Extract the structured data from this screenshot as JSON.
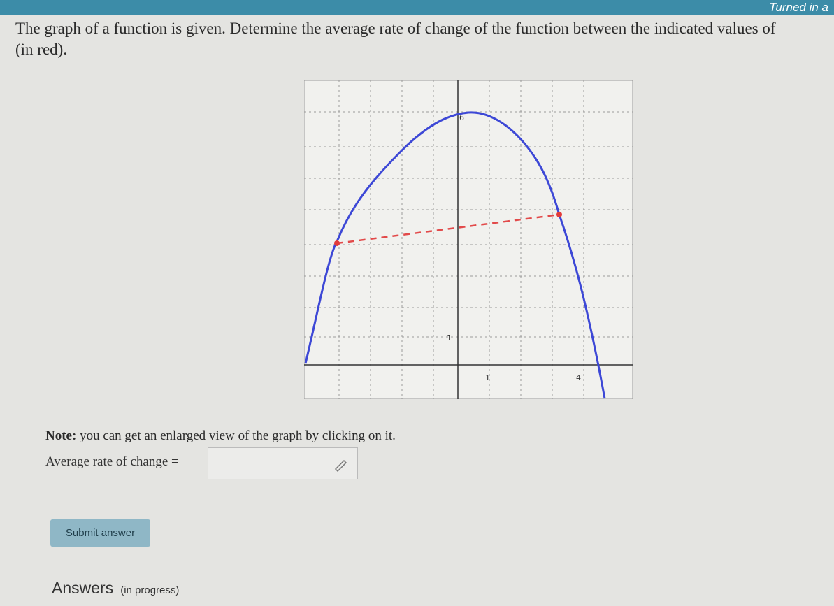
{
  "header": {
    "status": "Turned in a"
  },
  "question": {
    "line1": "The graph of a function is given. Determine the average rate of change of the function between the indicated values of",
    "line2": "(in red)."
  },
  "graph": {
    "labels": [
      "6",
      "1",
      "1",
      "4"
    ]
  },
  "note": {
    "bold": "Note:",
    "text": "you can get an enlarged view of the graph by clicking on it."
  },
  "answer": {
    "label": "Average rate of change ="
  },
  "button": "Submit answer",
  "answers": {
    "title": "Answers",
    "status": "(in progress)"
  }
}
